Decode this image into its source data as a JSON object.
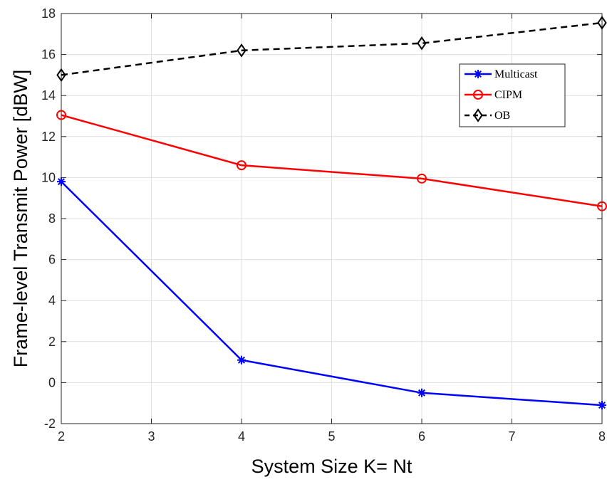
{
  "chart_data": {
    "type": "line",
    "title": "",
    "xlabel": "System Size K= Nt",
    "ylabel": "Frame-level Transmit Power [dBW]",
    "xlim": [
      2,
      8
    ],
    "ylim": [
      -2,
      18
    ],
    "xticks": [
      2,
      3,
      4,
      5,
      6,
      7,
      8
    ],
    "yticks": [
      -2,
      0,
      2,
      4,
      6,
      8,
      10,
      12,
      14,
      16,
      18
    ],
    "grid": true,
    "legend_position": "top-right",
    "x": [
      2,
      4,
      6,
      8
    ],
    "series": [
      {
        "name": "Multicast",
        "values": [
          9.8,
          1.1,
          -0.5,
          -1.1
        ],
        "color": "#0000ff",
        "marker": "asterisk",
        "dash": "solid"
      },
      {
        "name": "CIPM",
        "values": [
          13.05,
          10.6,
          9.95,
          8.6
        ],
        "color": "#ff0000",
        "marker": "circle",
        "dash": "solid"
      },
      {
        "name": "OB",
        "values": [
          15.0,
          16.2,
          16.55,
          17.55
        ],
        "color": "#000000",
        "marker": "diamond",
        "dash": "dashed"
      }
    ]
  }
}
